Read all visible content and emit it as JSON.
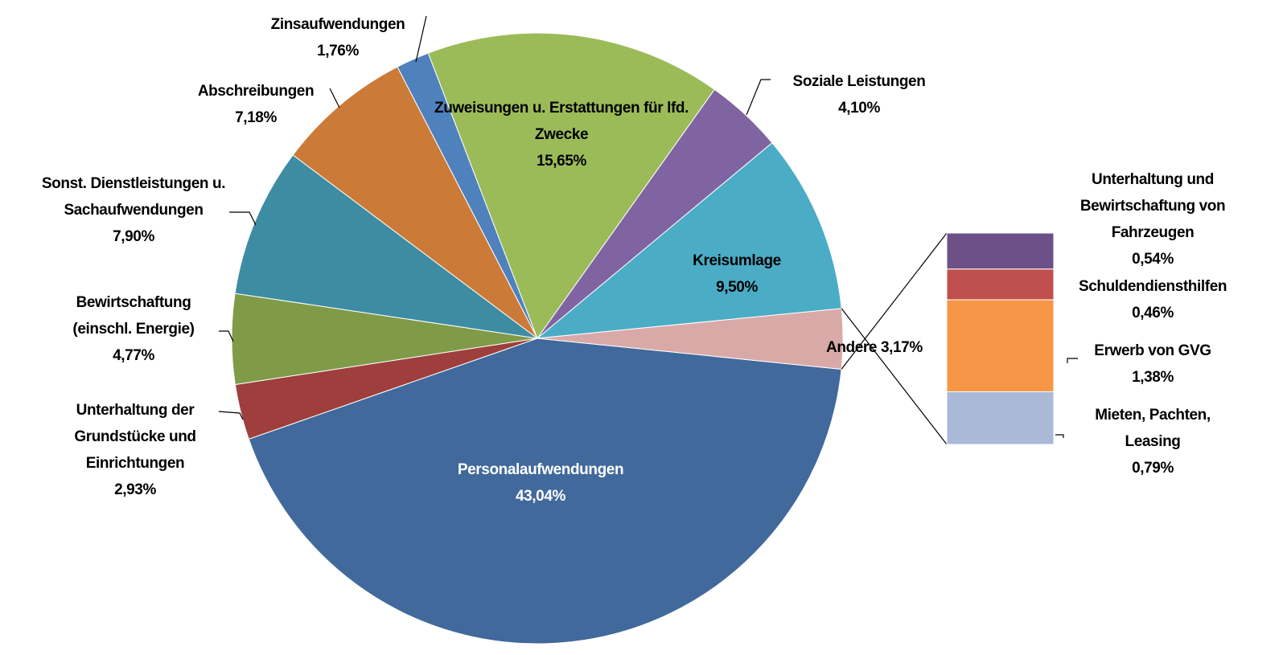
{
  "chart_data": [
    {
      "type": "pie",
      "categories": [
        "Personalaufwendungen",
        "Unterhaltung der Grundstücke und Einrichtungen",
        "Bewirtschaftung (einschl. Energie)",
        "Sonst. Dienstleistungen u. Sachaufwendungen",
        "Abschreibungen",
        "Zinsaufwendungen",
        "Zuweisungen u. Erstattungen für lfd. Zwecke",
        "Soziale Leistungen",
        "Kreisumlage",
        "Andere"
      ],
      "values": [
        43.04,
        2.93,
        4.77,
        7.9,
        7.18,
        1.76,
        15.65,
        4.1,
        9.5,
        3.17
      ],
      "value_labels": [
        "43,04%",
        "2,93%",
        "4,77%",
        "7,90%",
        "7,18%",
        "1,76%",
        "15,65%",
        "4,10%",
        "9,50%",
        "3,17%"
      ],
      "colors": [
        "#41699b",
        "#9e3f3d",
        "#7f9b48",
        "#3d8ca4",
        "#cc7a37",
        "#4f81bd",
        "#9bbb59",
        "#8064a2",
        "#4bacc6",
        "#d9a9a8"
      ]
    },
    {
      "type": "bar",
      "categories": [
        "Unterhaltung und Bewirtschaftung von Fahrzeugen",
        "Schuldendiensthilfen",
        "Erwerb von GVG",
        "Mieten, Pachten, Leasing"
      ],
      "values": [
        0.54,
        0.46,
        1.38,
        0.79
      ],
      "value_labels": [
        "0,54%",
        "0,46%",
        "1,38%",
        "0,79%"
      ],
      "colors": [
        "#6c5087",
        "#c0504d",
        "#f79646",
        "#aab9d8"
      ]
    }
  ]
}
